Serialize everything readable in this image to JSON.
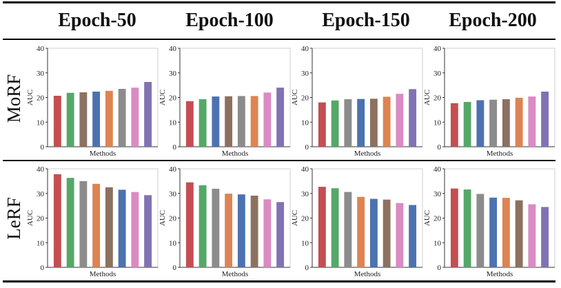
{
  "headers": [
    "Epoch-50",
    "Epoch-100",
    "Epoch-150",
    "Epoch-200"
  ],
  "row_labels": [
    "MoRF",
    "LeRF"
  ],
  "palette": [
    "#c44e52",
    "#55a868",
    "#8c8c8c",
    "#4c72b0",
    "#8c7161",
    "#dd8452",
    "#da8bc3",
    "#8172b3"
  ],
  "chart_data": [
    {
      "type": "bar",
      "row": "MoRF",
      "epoch": "Epoch-50",
      "xlabel": "Methods",
      "ylabel": "AUC",
      "ylim": [
        0,
        40
      ],
      "yticks": [
        0,
        10,
        20,
        30,
        40
      ],
      "colors": [
        "#c44e52",
        "#55a868",
        "#8c7161",
        "#4c72b0",
        "#dd8452",
        "#8c8c8c",
        "#da8bc3",
        "#8172b3"
      ],
      "values": [
        20.7,
        21.9,
        22.1,
        22.4,
        22.7,
        23.5,
        24.0,
        26.3
      ]
    },
    {
      "type": "bar",
      "row": "MoRF",
      "epoch": "Epoch-100",
      "xlabel": "Methods",
      "ylabel": "AUC",
      "ylim": [
        0,
        40
      ],
      "yticks": [
        0,
        10,
        20,
        30,
        40
      ],
      "colors": [
        "#c44e52",
        "#55a868",
        "#4c72b0",
        "#8c7161",
        "#8c8c8c",
        "#dd8452",
        "#da8bc3",
        "#8172b3"
      ],
      "values": [
        18.5,
        19.3,
        20.4,
        20.5,
        20.6,
        20.6,
        22.0,
        24.0
      ]
    },
    {
      "type": "bar",
      "row": "MoRF",
      "epoch": "Epoch-150",
      "xlabel": "Methods",
      "ylabel": "AUC",
      "ylim": [
        0,
        40
      ],
      "yticks": [
        0,
        10,
        20,
        30,
        40
      ],
      "colors": [
        "#c44e52",
        "#55a868",
        "#8c8c8c",
        "#4c72b0",
        "#8c7161",
        "#dd8452",
        "#da8bc3",
        "#8172b3"
      ],
      "values": [
        18.0,
        18.8,
        19.3,
        19.4,
        19.5,
        20.3,
        21.5,
        23.4
      ]
    },
    {
      "type": "bar",
      "row": "MoRF",
      "epoch": "Epoch-200",
      "xlabel": "Methods",
      "ylabel": "AUC",
      "ylim": [
        0,
        40
      ],
      "yticks": [
        0,
        10,
        20,
        30,
        40
      ],
      "colors": [
        "#c44e52",
        "#55a868",
        "#4c72b0",
        "#8c8c8c",
        "#8c7161",
        "#dd8452",
        "#da8bc3",
        "#8172b3"
      ],
      "values": [
        17.7,
        18.2,
        18.9,
        19.1,
        19.3,
        19.9,
        20.4,
        22.4
      ]
    },
    {
      "type": "bar",
      "row": "LeRF",
      "epoch": "Epoch-50",
      "xlabel": "Methods",
      "ylabel": "AUC",
      "ylim": [
        0,
        40
      ],
      "yticks": [
        0,
        10,
        20,
        30,
        40
      ],
      "colors": [
        "#c44e52",
        "#55a868",
        "#8c8c8c",
        "#dd8452",
        "#8c7161",
        "#4c72b0",
        "#da8bc3",
        "#8172b3"
      ],
      "values": [
        37.8,
        36.3,
        35.0,
        33.9,
        32.5,
        31.5,
        30.6,
        29.3
      ]
    },
    {
      "type": "bar",
      "row": "LeRF",
      "epoch": "Epoch-100",
      "xlabel": "Methods",
      "ylabel": "AUC",
      "ylim": [
        0,
        40
      ],
      "yticks": [
        0,
        10,
        20,
        30,
        40
      ],
      "colors": [
        "#c44e52",
        "#55a868",
        "#8c8c8c",
        "#dd8452",
        "#4c72b0",
        "#8c7161",
        "#da8bc3",
        "#8172b3"
      ],
      "values": [
        34.5,
        33.3,
        31.9,
        29.9,
        29.6,
        29.1,
        27.6,
        26.5
      ]
    },
    {
      "type": "bar",
      "row": "LeRF",
      "epoch": "Epoch-150",
      "xlabel": "Methods",
      "ylabel": "AUC",
      "ylim": [
        0,
        40
      ],
      "yticks": [
        0,
        10,
        20,
        30,
        40
      ],
      "colors": [
        "#c44e52",
        "#55a868",
        "#8c8c8c",
        "#dd8452",
        "#4c72b0",
        "#8c7161",
        "#da8bc3",
        "#4c72b0"
      ],
      "values": [
        32.7,
        32.1,
        30.6,
        28.6,
        27.8,
        27.5,
        26.1,
        25.3
      ]
    },
    {
      "type": "bar",
      "row": "LeRF",
      "epoch": "Epoch-200",
      "xlabel": "Methods",
      "ylabel": "AUC",
      "ylim": [
        0,
        40
      ],
      "yticks": [
        0,
        10,
        20,
        30,
        40
      ],
      "colors": [
        "#c44e52",
        "#55a868",
        "#8c8c8c",
        "#4c72b0",
        "#dd8452",
        "#8c7161",
        "#da8bc3",
        "#8172b3"
      ],
      "values": [
        32.0,
        31.6,
        29.8,
        28.3,
        28.2,
        27.2,
        25.6,
        24.5
      ]
    }
  ]
}
